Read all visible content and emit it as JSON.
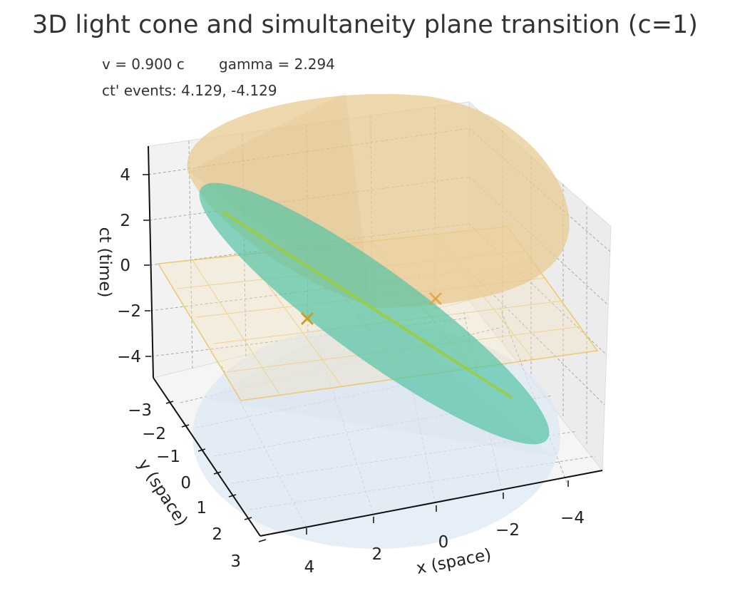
{
  "chart_data": {
    "type": "surface3d",
    "title": "3D light cone and simultaneity plane transition (c=1)",
    "info": {
      "velocity_text": "v = 0.900 c",
      "gamma_text": "gamma = 2.294",
      "events_text": "ct' events: 4.129, -4.129"
    },
    "params": {
      "c": 1,
      "v": 0.9,
      "gamma": 2.294,
      "ct_prime_events": [
        4.129,
        -4.129
      ]
    },
    "axes": {
      "x": {
        "label": "x (space)",
        "range": [
          -5,
          5
        ],
        "ticks": [
          "4",
          "2",
          "0",
          "−2",
          "−4"
        ]
      },
      "y": {
        "label": "y (space)",
        "range": [
          -3.5,
          3.5
        ],
        "ticks": [
          "−3",
          "−2",
          "−1",
          "0",
          "1",
          "2",
          "3"
        ]
      },
      "z": {
        "label": "ct (time)",
        "range": [
          -5,
          5
        ],
        "ticks": [
          "4",
          "2",
          "0",
          "−2",
          "−4"
        ]
      }
    },
    "grid": true,
    "surfaces": [
      {
        "name": "future light cone",
        "color": "#e8c98f",
        "opacity": 0.7
      },
      {
        "name": "past light cone",
        "color": "#dce8f5",
        "opacity": 0.65
      },
      {
        "name": "simultaneity plane t=0",
        "color": "#f3dfa6"
      },
      {
        "name": "simultaneity plane t'=0",
        "color": "#4fc3a4",
        "slope": 0.9
      }
    ],
    "lines": [
      {
        "name": "x-axis in moving frame",
        "color": "#9ccc3a"
      }
    ],
    "markers": [
      {
        "name": "event 1",
        "symbol": "x",
        "color": "#e0a33a"
      },
      {
        "name": "event 2",
        "symbol": "x",
        "color": "#c9a020"
      }
    ]
  }
}
